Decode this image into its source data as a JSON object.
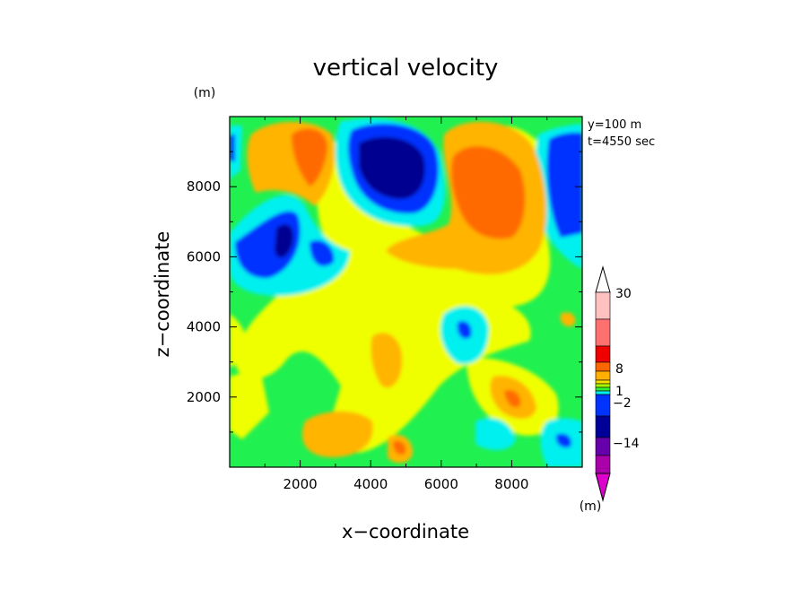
{
  "chart_data": {
    "type": "heatmap",
    "title": "vertical velocity",
    "xlabel": "x−coordinate",
    "ylabel": "z−coordinate",
    "x_unit": "(m)",
    "y_unit": "(m)",
    "colorbar_unit": "(m)",
    "annotations": [
      "y=100 m",
      "t=4550 sec"
    ],
    "xlim": [
      0,
      10000
    ],
    "ylim": [
      0,
      10000
    ],
    "x_ticks": [
      2000,
      4000,
      6000,
      8000
    ],
    "y_ticks": [
      2000,
      4000,
      6000,
      8000
    ],
    "x_tick_labels": [
      "2000",
      "4000",
      "6000",
      "8000"
    ],
    "y_tick_labels": [
      "2000",
      "4000",
      "6000",
      "8000"
    ],
    "colorbar_levels": [
      "30",
      "8",
      "1",
      "−2",
      "−14"
    ],
    "colorbar_colors": [
      "#ffc0c0",
      "#ff7070",
      "#ee0000",
      "#ff6600",
      "#ffb000",
      "#f4e000",
      "#aaff00",
      "#33ee33",
      "#00eeee",
      "#0033ff",
      "#000099",
      "#6600aa",
      "#aa00aa",
      "#dd00cc"
    ],
    "colors": {
      "orange": "#ff6a00",
      "light_orange": "#ffb400",
      "yellow": "#f0ff00",
      "green": "#20f050",
      "cyan": "#00f0f0",
      "blue": "#0030ff",
      "navy": "#000090",
      "red": "#e00000",
      "magenta": "#d000c0"
    }
  }
}
